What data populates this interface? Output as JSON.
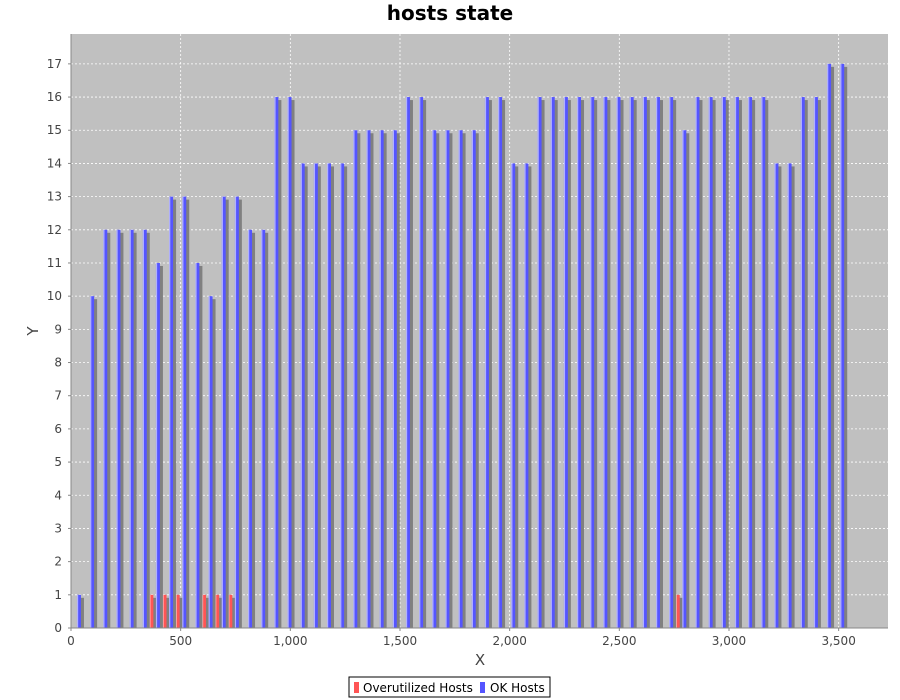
{
  "chart_data": {
    "type": "bar",
    "title": "hosts state",
    "xlabel": "X",
    "ylabel": "Y",
    "xlim": [
      0,
      3725
    ],
    "ylim": [
      0,
      17.9
    ],
    "xticks": [
      0,
      500,
      1000,
      1500,
      2000,
      2500,
      3000,
      3500
    ],
    "xtick_labels": [
      "0",
      "500",
      "1,000",
      "1,500",
      "2,000",
      "2,500",
      "3,000",
      "3,500"
    ],
    "yticks": [
      0,
      1,
      2,
      3,
      4,
      5,
      6,
      7,
      8,
      9,
      10,
      11,
      12,
      13,
      14,
      15,
      16,
      17
    ],
    "grid": true,
    "legend_position": "bottom",
    "colors": {
      "plot_background": "#c0c0c0",
      "grid": "#ffffff",
      "shadow": "#808080"
    },
    "series": [
      {
        "name": "Overutilized Hosts",
        "color": "#ff5555",
        "x": [
          380,
          440,
          500,
          620,
          680,
          740,
          2780
        ],
        "values": [
          1,
          1,
          1,
          1,
          1,
          1,
          1
        ]
      },
      {
        "name": "OK Hosts",
        "color": "#5555ff",
        "x": [
          50,
          110,
          170,
          230,
          290,
          350,
          410,
          470,
          530,
          590,
          650,
          710,
          770,
          830,
          890,
          950,
          1010,
          1070,
          1130,
          1190,
          1250,
          1310,
          1370,
          1430,
          1490,
          1550,
          1610,
          1670,
          1730,
          1790,
          1850,
          1910,
          1970,
          2030,
          2090,
          2150,
          2210,
          2270,
          2330,
          2390,
          2450,
          2510,
          2570,
          2630,
          2690,
          2750,
          2810,
          2870,
          2930,
          2990,
          3050,
          3110,
          3170,
          3230,
          3290,
          3350,
          3410,
          3470,
          3530
        ],
        "values": [
          1,
          10,
          12,
          12,
          12,
          12,
          11,
          13,
          13,
          11,
          10,
          13,
          13,
          12,
          12,
          16,
          16,
          14,
          14,
          14,
          14,
          15,
          15,
          15,
          15,
          16,
          16,
          15,
          15,
          15,
          15,
          16,
          16,
          14,
          14,
          16,
          16,
          16,
          16,
          16,
          16,
          16,
          16,
          16,
          16,
          16,
          15,
          16,
          16,
          16,
          16,
          16,
          16,
          14,
          14,
          16,
          16,
          17,
          17
        ]
      }
    ]
  }
}
